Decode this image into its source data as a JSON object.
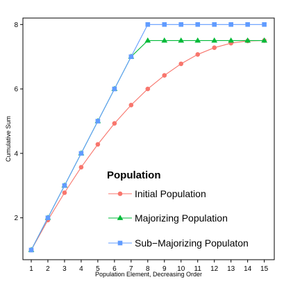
{
  "chart_data": {
    "type": "line",
    "xlabel": "Population Element, Decreasing Order",
    "ylabel": "Cumulative Sum",
    "x": [
      1,
      2,
      3,
      4,
      5,
      6,
      7,
      8,
      9,
      10,
      11,
      12,
      13,
      14,
      15
    ],
    "xlim": [
      0.5,
      15.6
    ],
    "ylim": [
      0.7,
      8.2
    ],
    "yticks": [
      2,
      4,
      6,
      8
    ],
    "grid": false,
    "legend": {
      "title": "Population",
      "placement": "lower-right"
    },
    "series": [
      {
        "name": "Initial Population",
        "color": "#F8766D",
        "marker": "circle",
        "values": [
          1.0,
          1.93,
          2.78,
          3.57,
          4.28,
          4.93,
          5.5,
          6.0,
          6.42,
          6.78,
          7.07,
          7.28,
          7.42,
          7.49,
          7.5
        ]
      },
      {
        "name": "Majorizing Population",
        "color": "#00BA38",
        "marker": "triangle",
        "values": [
          1,
          2,
          3,
          4,
          5,
          6,
          7,
          7.5,
          7.5,
          7.5,
          7.5,
          7.5,
          7.5,
          7.5,
          7.5
        ]
      },
      {
        "name": "Sub−Majorizing Populaton",
        "color": "#619CFF",
        "marker": "square",
        "values": [
          1,
          2,
          3,
          4,
          5,
          6,
          7,
          8,
          8,
          8,
          8,
          8,
          8,
          8,
          8
        ]
      }
    ]
  }
}
